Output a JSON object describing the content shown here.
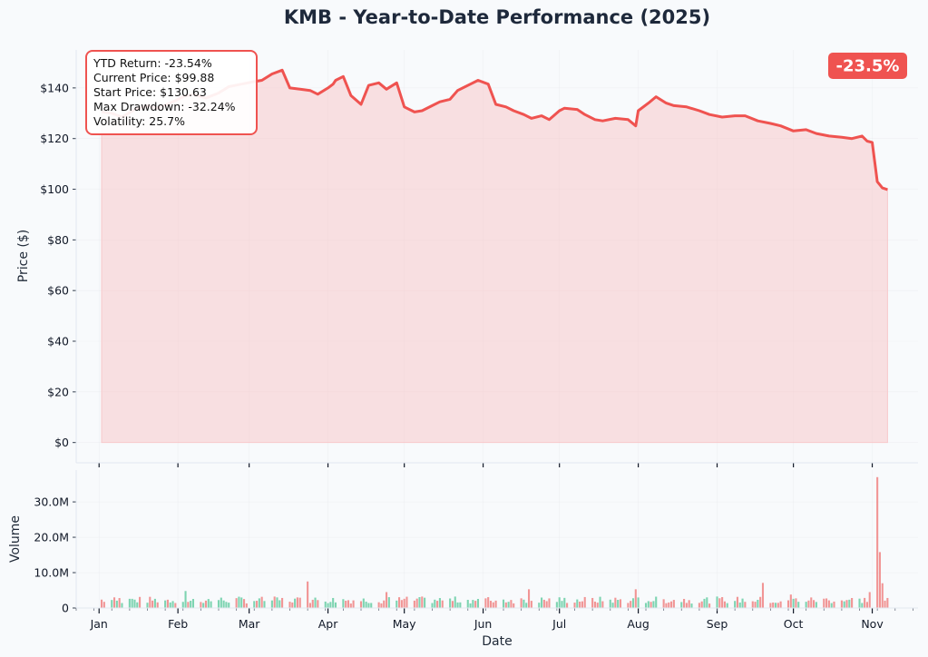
{
  "chart_data": [
    {
      "type": "area",
      "title": "KMB - Year-to-Date Performance (2025)",
      "ylabel": "Price ($)",
      "ylim": [
        -8,
        155
      ],
      "yticks": [
        0,
        20,
        40,
        60,
        80,
        100,
        120,
        140
      ],
      "ytick_labels": [
        "$0",
        "$20",
        "$40",
        "$60",
        "$80",
        "$100",
        "$120",
        "$140"
      ],
      "xlim": [
        "2024-12-23",
        "2025-11-19"
      ],
      "series": [
        {
          "x": [
            "2025-01-02",
            "2025-01-06",
            "2025-01-10",
            "2025-01-15",
            "2025-01-20",
            "2025-01-24",
            "2025-01-29",
            "2025-02-03",
            "2025-02-07",
            "2025-02-12",
            "2025-02-17",
            "2025-02-21",
            "2025-02-26",
            "2025-03-03",
            "2025-03-06",
            "2025-03-10",
            "2025-03-14",
            "2025-03-17",
            "2025-03-21",
            "2025-03-25",
            "2025-03-28",
            "2025-04-01",
            "2025-04-03",
            "2025-04-04",
            "2025-04-07",
            "2025-04-10",
            "2025-04-14",
            "2025-04-17",
            "2025-04-21",
            "2025-04-24",
            "2025-04-28",
            "2025-05-01",
            "2025-05-05",
            "2025-05-08",
            "2025-05-12",
            "2025-05-15",
            "2025-05-19",
            "2025-05-22",
            "2025-05-27",
            "2025-05-30",
            "2025-06-03",
            "2025-06-06",
            "2025-06-10",
            "2025-06-13",
            "2025-06-17",
            "2025-06-20",
            "2025-06-24",
            "2025-06-27",
            "2025-07-01",
            "2025-07-03",
            "2025-07-08",
            "2025-07-11",
            "2025-07-15",
            "2025-07-18",
            "2025-07-23",
            "2025-07-28",
            "2025-07-31",
            "2025-08-01",
            "2025-08-05",
            "2025-08-08",
            "2025-08-12",
            "2025-08-15",
            "2025-08-20",
            "2025-08-25",
            "2025-08-29",
            "2025-09-03",
            "2025-09-08",
            "2025-09-12",
            "2025-09-17",
            "2025-09-22",
            "2025-09-26",
            "2025-10-01",
            "2025-10-06",
            "2025-10-10",
            "2025-10-15",
            "2025-10-20",
            "2025-10-24",
            "2025-10-28",
            "2025-10-30",
            "2025-11-01",
            "2025-11-03",
            "2025-11-05",
            "2025-11-07"
          ],
          "y": [
            130.63,
            130.0,
            128.5,
            131.5,
            133.0,
            132.0,
            134.0,
            136.5,
            137.5,
            136.0,
            138.0,
            140.5,
            141.5,
            142.5,
            143.0,
            145.5,
            147.0,
            140.0,
            139.5,
            139.0,
            137.5,
            140.0,
            141.5,
            143.0,
            144.5,
            137.0,
            133.5,
            141.0,
            142.0,
            139.5,
            142.0,
            132.5,
            130.5,
            131.0,
            133.0,
            134.5,
            135.5,
            139.0,
            141.5,
            143.0,
            141.5,
            133.5,
            132.5,
            131.0,
            129.5,
            128.0,
            129.0,
            127.5,
            131.0,
            132.0,
            131.5,
            129.5,
            127.5,
            127.0,
            128.0,
            127.5,
            125.0,
            131.0,
            134.0,
            136.5,
            134.0,
            133.0,
            132.5,
            131.0,
            129.5,
            128.5,
            129.0,
            129.0,
            127.0,
            126.0,
            125.0,
            123.0,
            123.5,
            122.0,
            121.0,
            120.5,
            120.0,
            121.0,
            119.0,
            118.5,
            103.0,
            100.5,
            99.88
          ],
          "line_color": "#ef5350",
          "fill_color": "#f8c9cb"
        }
      ],
      "stats": [
        "YTD Return: -23.54%",
        "Current Price: $99.88",
        "Start Price: $130.63",
        "Max Drawdown: -32.24%",
        "Volatility: 25.7%"
      ],
      "badge": {
        "text": "-23.5%",
        "color": "#ef5350"
      },
      "grid": true
    },
    {
      "type": "bar",
      "xlabel": "Date",
      "ylabel": "Volume",
      "ylim": [
        0,
        39000000
      ],
      "yticks": [
        0,
        10000000,
        20000000,
        30000000
      ],
      "ytick_labels": [
        "0",
        "10.0M",
        "20.0M",
        "30.0M"
      ],
      "xlim": [
        "2024-12-23",
        "2025-11-19"
      ],
      "xticks": [
        "2025-01-01",
        "2025-02-01",
        "2025-03-01",
        "2025-04-01",
        "2025-05-01",
        "2025-06-01",
        "2025-07-01",
        "2025-08-01",
        "2025-09-01",
        "2025-10-01",
        "2025-11-01"
      ],
      "xtick_labels": [
        "Jan",
        "Feb",
        "Mar",
        "Apr",
        "May",
        "Jun",
        "Jul",
        "Aug",
        "Sep",
        "Oct",
        "Nov"
      ],
      "up_color": "#6fcfa8",
      "down_color": "#ef8a8a",
      "baseline_volume": 2500000,
      "volume_spikes": [
        {
          "x": "2025-01-13",
          "value": 2600000
        },
        {
          "x": "2025-02-04",
          "value": 4800000
        },
        {
          "x": "2025-03-24",
          "value": 7500000
        },
        {
          "x": "2025-04-24",
          "value": 4500000
        },
        {
          "x": "2025-06-19",
          "value": 5300000
        },
        {
          "x": "2025-07-31",
          "value": 5300000
        },
        {
          "x": "2025-09-19",
          "value": 7100000
        },
        {
          "x": "2025-09-30",
          "value": 3800000
        },
        {
          "x": "2025-10-31",
          "value": 4500000
        },
        {
          "x": "2025-11-03",
          "value": 37000000
        },
        {
          "x": "2025-11-04",
          "value": 15800000
        },
        {
          "x": "2025-11-05",
          "value": 7000000
        }
      ],
      "grid": true
    }
  ]
}
